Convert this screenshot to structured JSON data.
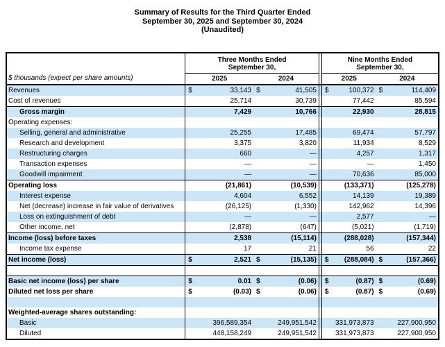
{
  "title": {
    "line1": "Summary of Results for the Third Quarter Ended",
    "line2": "September 30, 2025 and September 30, 2024",
    "line3": "(Unaudited)"
  },
  "table": {
    "note": "$ thousands (expect per share amounts)",
    "colors": {
      "row_highlight": "#cce6f7",
      "border": "#000000"
    },
    "col_groups": [
      {
        "line1": "Three Months Ended",
        "line2": "September 30,",
        "years": [
          "2025",
          "2024"
        ]
      },
      {
        "line1": "Nine Months Ended",
        "line2": "September 30,",
        "years": [
          "2025",
          "2024"
        ]
      }
    ],
    "rows": [
      {
        "label": "Revenues",
        "type": "data",
        "shade": "blue",
        "dollar": true,
        "values": [
          "33,143",
          "41,505",
          "100,372",
          "114,409"
        ]
      },
      {
        "label": "Cost of revenues",
        "type": "data",
        "shade": "white",
        "values": [
          "25,714",
          "30,739",
          "77,442",
          "85,594"
        ]
      },
      {
        "label": "Gross margin",
        "type": "data",
        "shade": "blue",
        "indent": true,
        "bold": true,
        "border_top": true,
        "values": [
          "7,429",
          "10,766",
          "22,930",
          "28,815"
        ]
      },
      {
        "label": "Operating expenses:",
        "type": "label",
        "shade": "white"
      },
      {
        "label": "Selling, general and administrative",
        "type": "data",
        "shade": "blue",
        "indent": true,
        "values": [
          "25,255",
          "17,485",
          "69,474",
          "57,797"
        ]
      },
      {
        "label": "Research and development",
        "type": "data",
        "shade": "white",
        "indent": true,
        "values": [
          "3,375",
          "3,820",
          "11,934",
          "8,529"
        ]
      },
      {
        "label": "Restructuring charges",
        "type": "data",
        "shade": "blue",
        "indent": true,
        "values": [
          "660",
          "—",
          "4,257",
          "1,317"
        ]
      },
      {
        "label": "Transaction expenses",
        "type": "data",
        "shade": "white",
        "indent": true,
        "values": [
          "—",
          "—",
          "—",
          "1,450"
        ]
      },
      {
        "label": "Goodwill impairment",
        "type": "data",
        "shade": "blue",
        "indent": true,
        "values": [
          "—",
          "—",
          "70,636",
          "85,000"
        ]
      },
      {
        "label": "Operating loss",
        "type": "data",
        "shade": "white",
        "bold": true,
        "border_top": true,
        "values": [
          "(21,861)",
          "(10,539)",
          "(133,371)",
          "(125,278)"
        ]
      },
      {
        "label": "Interest expense",
        "type": "data",
        "shade": "blue",
        "indent": true,
        "values": [
          "4,604",
          "6,552",
          "14,139",
          "19,389"
        ]
      },
      {
        "label": "Net (decrease) increase in fair value of derivatives",
        "type": "data",
        "shade": "white",
        "indent": true,
        "values": [
          "(26,125)",
          "(1,330)",
          "142,962",
          "14,396"
        ]
      },
      {
        "label": "Loss on extinguishment of debt",
        "type": "data",
        "shade": "blue",
        "indent": true,
        "values": [
          "—",
          "—",
          "2,577",
          "—"
        ]
      },
      {
        "label": "Other income, net",
        "type": "data",
        "shade": "white",
        "indent": true,
        "values": [
          "(2,878)",
          "(647)",
          "(5,021)",
          "(1,719)"
        ]
      },
      {
        "label": "Income (loss) before taxes",
        "type": "data",
        "shade": "blue",
        "bold": true,
        "border_top": true,
        "values": [
          "2,538",
          "(15,114)",
          "(288,028)",
          "(157,344)"
        ]
      },
      {
        "label": "Income tax expense",
        "type": "data",
        "shade": "white",
        "indent": true,
        "values": [
          "17",
          "21",
          "56",
          "22"
        ]
      },
      {
        "label": "Net income (loss)",
        "type": "data",
        "shade": "blue",
        "bold": true,
        "border_top": true,
        "border_bottom": true,
        "dollar": true,
        "values": [
          "2,521",
          "(15,135)",
          "(288,084)",
          "(157,366)"
        ]
      },
      {
        "label": "",
        "type": "blank",
        "shade": "white"
      },
      {
        "label": "Basic net income (loss) per share",
        "type": "data",
        "shade": "blue",
        "bold": true,
        "border_top": true,
        "dollar": true,
        "values": [
          "0.01",
          "(0.06)",
          "(0.87)",
          "(0.69)"
        ]
      },
      {
        "label": "Diluted net loss per share",
        "type": "data",
        "shade": "white",
        "bold": true,
        "dollar": true,
        "values": [
          "(0.03)",
          "(0.06)",
          "(0.87)",
          "(0.69)"
        ]
      },
      {
        "label": "",
        "type": "blank",
        "shade": "blue"
      },
      {
        "label": "Weighted-average shares outstanding:",
        "type": "label",
        "shade": "white",
        "bold": true
      },
      {
        "label": "Basic",
        "type": "shares",
        "shade": "blue",
        "indent": true,
        "values": [
          "396,589,354",
          "249,951,542",
          "331,973,873",
          "227,900,950"
        ]
      },
      {
        "label": "Diluted",
        "type": "shares",
        "shade": "white",
        "indent": true,
        "values": [
          "448,158,249",
          "249,951,542",
          "331,973,873",
          "227,900,950"
        ]
      }
    ]
  }
}
